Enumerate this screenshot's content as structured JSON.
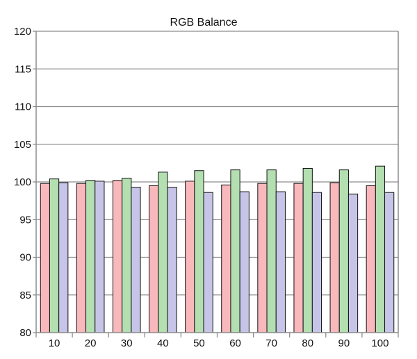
{
  "chart_data": {
    "type": "bar",
    "title": "RGB Balance",
    "xlabel": "",
    "ylabel": "",
    "categories": [
      "10",
      "20",
      "30",
      "40",
      "50",
      "60",
      "70",
      "80",
      "90",
      "100"
    ],
    "series": [
      {
        "values": [
          99.8,
          99.8,
          100.2,
          99.5,
          100.1,
          99.6,
          99.8,
          99.8,
          99.9,
          99.5
        ]
      },
      {
        "values": [
          100.4,
          100.2,
          100.5,
          101.3,
          101.5,
          101.6,
          101.6,
          101.8,
          101.6,
          102.1
        ]
      },
      {
        "values": [
          99.9,
          100.1,
          99.3,
          99.3,
          98.6,
          98.7,
          98.7,
          98.6,
          98.4,
          98.6
        ]
      }
    ],
    "ylim": [
      80,
      120
    ],
    "yticks": [
      80,
      85,
      90,
      95,
      100,
      105,
      110,
      115,
      120
    ],
    "grid": true,
    "legend": "none",
    "colors": {
      "series": [
        "#f9b8bc",
        "#b3dfb1",
        "#c7c5e7"
      ],
      "bar_outline": "#111111",
      "grid": "#8c8c8c",
      "axis": "#8c8c8c"
    }
  }
}
